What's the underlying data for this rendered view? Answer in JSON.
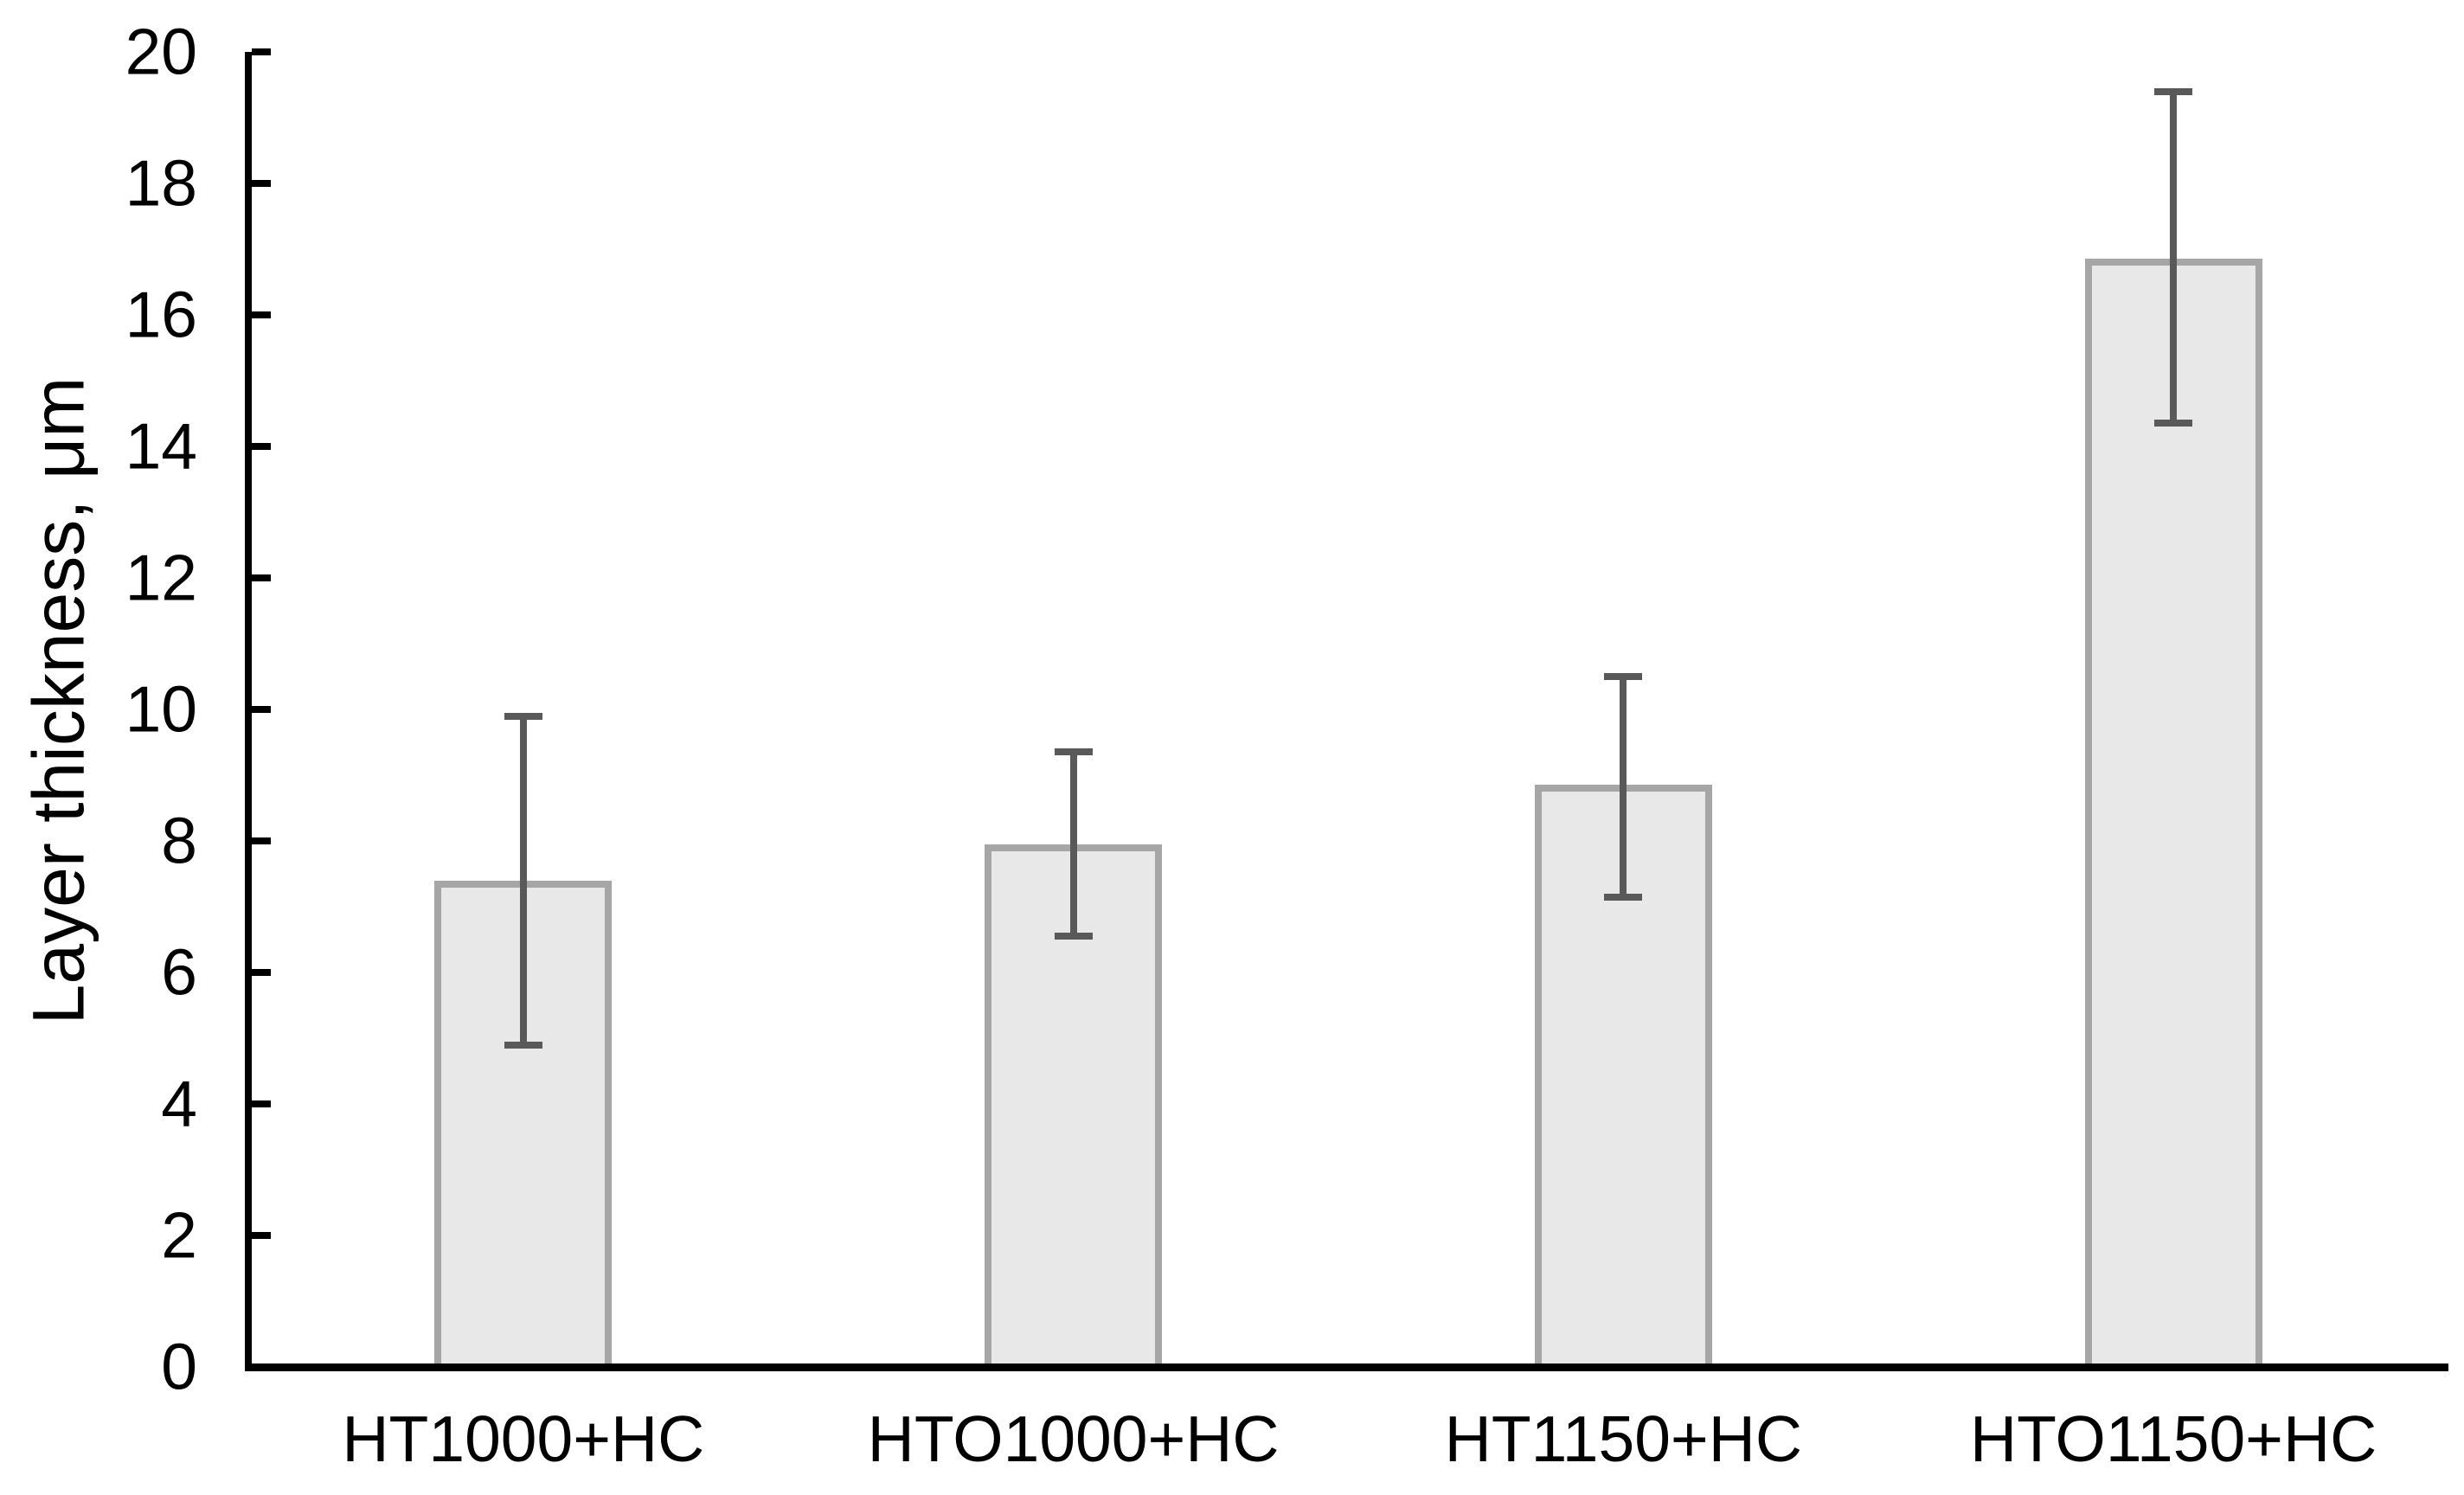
{
  "chart_data": {
    "type": "bar",
    "title": "",
    "categories": [
      "HT1000+HC",
      "HTO1000+HC",
      "HT1150+HC",
      "HTO1150+HC"
    ],
    "values": [
      7.4,
      7.95,
      8.85,
      16.85
    ],
    "error_upper": [
      9.9,
      9.35,
      10.5,
      19.4
    ],
    "error_lower": [
      4.9,
      6.55,
      7.15,
      14.35
    ],
    "xlabel": "",
    "ylabel": "Layer thickness, μm",
    "ylim": [
      0,
      20
    ],
    "yticks": [
      0,
      2,
      4,
      6,
      8,
      10,
      12,
      14,
      16,
      18,
      20
    ],
    "grid": false,
    "legend": false,
    "colors": {
      "bar_fill": "#e8e8e8",
      "bar_border": "#a6a6a6",
      "error_bar": "#595959",
      "axis": "#000000",
      "text": "#000000",
      "background": "#ffffff"
    }
  }
}
